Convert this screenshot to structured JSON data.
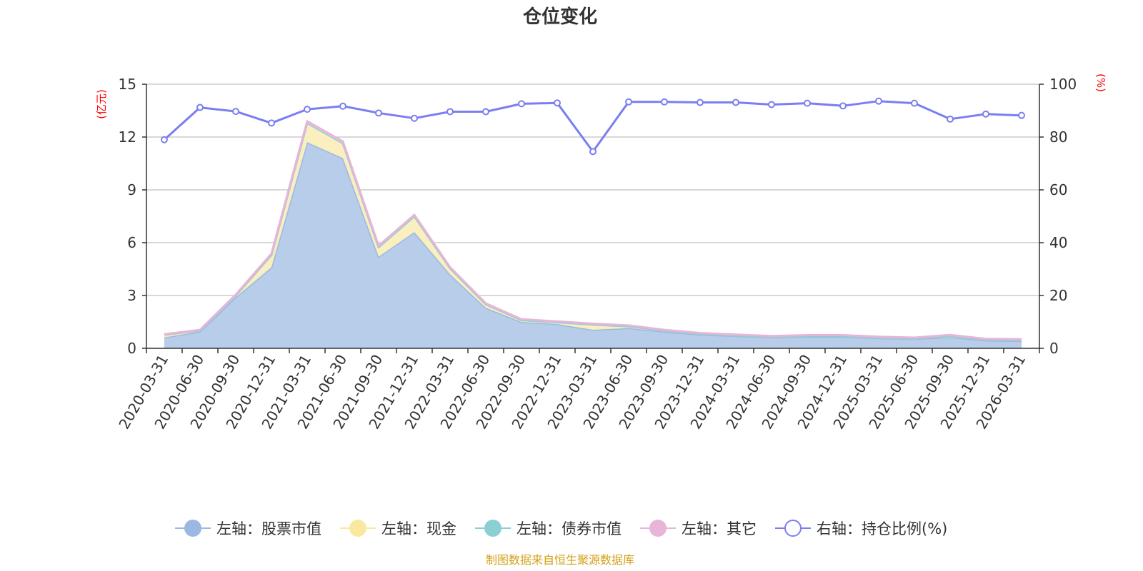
{
  "chart_data": {
    "type": "area",
    "title": "仓位变化",
    "left_unit": "(亿元)",
    "right_unit": "(%)",
    "left_ylim": [
      0,
      15
    ],
    "left_ticks": [
      "0",
      "3",
      "6",
      "9",
      "12",
      "15"
    ],
    "right_ylim": [
      0,
      100
    ],
    "right_ticks": [
      "0",
      "20",
      "40",
      "60",
      "80",
      "100"
    ],
    "categories": [
      "2020-03-31",
      "2020-06-30",
      "2020-09-30",
      "2020-12-31",
      "2021-03-31",
      "2021-06-30",
      "2021-09-30",
      "2021-12-31",
      "2022-03-31",
      "2022-06-30",
      "2022-09-30",
      "2022-12-31",
      "2023-03-31",
      "2023-06-30",
      "2023-09-30",
      "2023-12-31",
      "2024-03-31",
      "2024-06-30",
      "2024-09-30",
      "2024-12-31",
      "2025-03-31",
      "2025-06-30",
      "2025-09-30",
      "2025-12-31",
      "2026-03-31"
    ],
    "stacked_series": [
      {
        "name": "左轴：股票市值",
        "color": "#9bb8e3",
        "fill": "#b8cdea",
        "values": [
          0.62,
          0.95,
          2.9,
          4.6,
          11.7,
          10.8,
          5.2,
          6.6,
          4.2,
          2.3,
          1.5,
          1.38,
          1.05,
          1.15,
          0.95,
          0.78,
          0.7,
          0.63,
          0.66,
          0.66,
          0.58,
          0.54,
          0.64,
          0.45,
          0.42
        ]
      },
      {
        "name": "左轴：现金",
        "color": "#fae8a0",
        "fill": "#fbeebd",
        "values": [
          0.15,
          0.06,
          0.1,
          0.7,
          1.1,
          0.85,
          0.55,
          0.9,
          0.35,
          0.2,
          0.1,
          0.1,
          0.3,
          0.1,
          0.06,
          0.05,
          0.04,
          0.03,
          0.05,
          0.05,
          0.04,
          0.03,
          0.08,
          0.05,
          0.06
        ]
      },
      {
        "name": "左轴：债券市值",
        "color": "#8ccfd3",
        "fill": "#bde3e6",
        "values": [
          0,
          0,
          0,
          0,
          0,
          0,
          0,
          0,
          0,
          0,
          0,
          0,
          0,
          0,
          0,
          0,
          0,
          0,
          0,
          0,
          0,
          0,
          0,
          0,
          0
        ]
      },
      {
        "name": "左轴：其它",
        "color": "#e8b4d8",
        "fill": "#f1d2e6",
        "values": [
          0.03,
          0.04,
          0.05,
          0.08,
          0.1,
          0.1,
          0.08,
          0.08,
          0.06,
          0.05,
          0.05,
          0.05,
          0.05,
          0.05,
          0.04,
          0.04,
          0.04,
          0.04,
          0.04,
          0.04,
          0.04,
          0.04,
          0.04,
          0.04,
          0.04
        ]
      }
    ],
    "line_series": {
      "name": "右轴：持仓比例(%)",
      "color": "#7b7ef0",
      "values": [
        79.0,
        91.2,
        89.7,
        85.3,
        90.5,
        91.7,
        89.1,
        87.1,
        89.6,
        89.6,
        92.6,
        92.9,
        74.5,
        93.3,
        93.3,
        93.1,
        93.1,
        92.3,
        92.8,
        91.8,
        93.6,
        92.8,
        86.8,
        88.7,
        88.2
      ]
    },
    "source": "制图数据来自恒生聚源数据库"
  }
}
